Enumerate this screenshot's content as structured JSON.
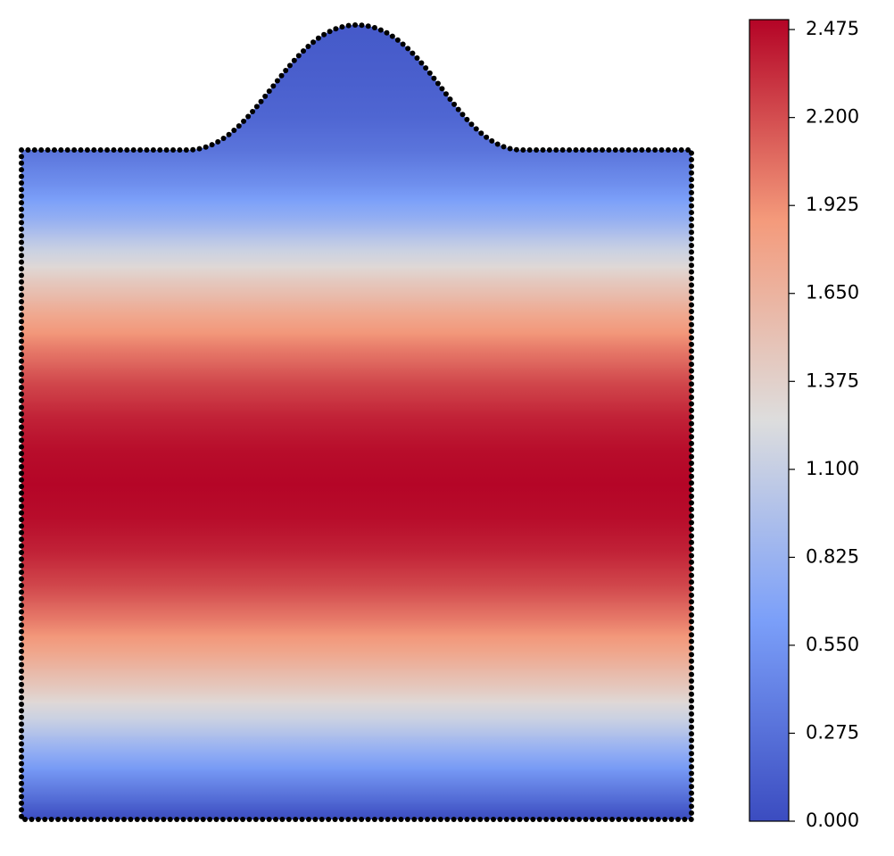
{
  "chart_data": {
    "type": "contour",
    "field": {
      "y": [
        0,
        0.05,
        0.1,
        0.15,
        0.2,
        0.25,
        0.3,
        0.35,
        0.4,
        0.45,
        0.5,
        0.55,
        0.6,
        0.65,
        0.7,
        0.75,
        0.8,
        0.85,
        0.9,
        0.95,
        1.0,
        1.05,
        1.1,
        1.15,
        1.19
      ],
      "values": [
        0,
        0.39,
        0.77,
        1.13,
        1.47,
        1.77,
        2.02,
        2.23,
        2.38,
        2.47,
        2.5,
        2.47,
        2.38,
        2.23,
        2.02,
        1.77,
        1.47,
        1.13,
        0.77,
        0.5,
        0.3,
        0.2,
        0.15,
        0.12,
        0.1
      ]
    },
    "colormap": [
      "#3b4cc0",
      "#7b9ff9",
      "#dddddd",
      "#f49a7b",
      "#b40426"
    ],
    "clim": [
      0,
      2.506
    ],
    "cticks": [
      {
        "value": 0,
        "label": "0.000"
      },
      {
        "value": 0.275,
        "label": "0.275"
      },
      {
        "value": 0.55,
        "label": "0.550"
      },
      {
        "value": 0.825,
        "label": "0.825"
      },
      {
        "value": 1.1,
        "label": "1.100"
      },
      {
        "value": 1.375,
        "label": "1.375"
      },
      {
        "value": 1.65,
        "label": "1.650"
      },
      {
        "value": 1.925,
        "label": "1.925"
      },
      {
        "value": 2.2,
        "label": "2.200"
      },
      {
        "value": 2.475,
        "label": "2.475"
      }
    ]
  }
}
